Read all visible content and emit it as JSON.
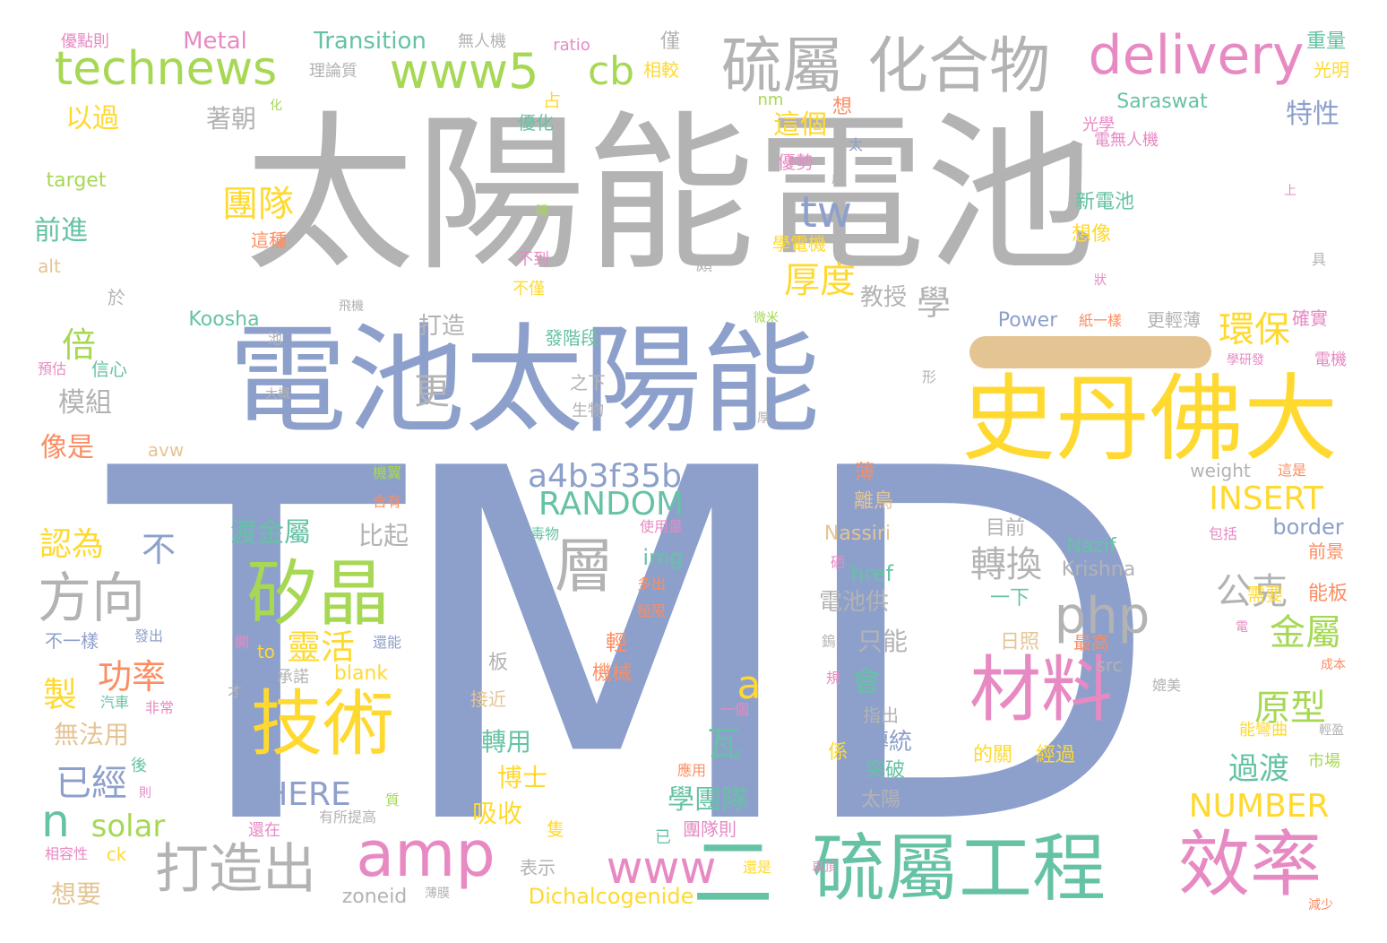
{
  "palette": {
    "gray": "#b3b3b3",
    "blue": "#8da0cb",
    "yellow": "#ffd92f",
    "green": "#a6d854",
    "teal": "#66c2a5",
    "pink": "#e78ac3",
    "orange": "#fc8d62",
    "tan": "#e5c494"
  },
  "dash_color": "#e5c494",
  "words": [
    {
      "text": "太陽能電池",
      "color": "gray"
    },
    {
      "text": "TMD",
      "color": "blue"
    },
    {
      "text": "電池太陽能",
      "color": "blue"
    },
    {
      "text": "史丹佛大",
      "color": "yellow"
    },
    {
      "text": "硫屬",
      "color": "gray"
    },
    {
      "text": "化合物",
      "color": "gray"
    },
    {
      "text": "technews",
      "color": "green"
    },
    {
      "text": "www5",
      "color": "green"
    },
    {
      "text": "delivery",
      "color": "pink"
    },
    {
      "text": "cb",
      "color": "green"
    },
    {
      "text": "tw",
      "color": "blue"
    },
    {
      "text": "硫屬工程",
      "color": "teal"
    },
    {
      "text": "二",
      "color": "teal"
    },
    {
      "text": "效率",
      "color": "pink"
    },
    {
      "text": "材料",
      "color": "pink"
    },
    {
      "text": "技術",
      "color": "yellow"
    },
    {
      "text": "矽晶",
      "color": "green"
    },
    {
      "text": "amp",
      "color": "pink"
    },
    {
      "text": "打造出",
      "color": "gray"
    },
    {
      "text": "方向",
      "color": "gray"
    },
    {
      "text": "php",
      "color": "gray"
    },
    {
      "text": "層",
      "color": "gray"
    },
    {
      "text": "a4b3f35b",
      "color": "blue"
    },
    {
      "text": "RANDOM",
      "color": "teal"
    },
    {
      "text": "INSERT",
      "color": "yellow"
    },
    {
      "text": "www",
      "color": "pink"
    },
    {
      "text": "NUMBER",
      "color": "yellow"
    },
    {
      "text": "HERE",
      "color": "blue"
    },
    {
      "text": "solar",
      "color": "green"
    },
    {
      "text": "n",
      "color": "teal"
    },
    {
      "text": "已經",
      "color": "blue"
    },
    {
      "text": "環保",
      "color": "yellow"
    },
    {
      "text": "厚度",
      "color": "yellow"
    },
    {
      "text": "團隊",
      "color": "yellow"
    },
    {
      "text": "轉換",
      "color": "gray"
    },
    {
      "text": "公克",
      "color": "gray"
    },
    {
      "text": "金屬",
      "color": "green"
    },
    {
      "text": "原型",
      "color": "green"
    },
    {
      "text": "過渡",
      "color": "teal"
    },
    {
      "text": "靈活",
      "color": "yellow"
    },
    {
      "text": "功率",
      "color": "orange"
    },
    {
      "text": "倍",
      "color": "green"
    },
    {
      "text": "更",
      "color": "gray"
    },
    {
      "text": "模組",
      "color": "gray"
    },
    {
      "text": "像是",
      "color": "orange"
    },
    {
      "text": "認為",
      "color": "yellow"
    },
    {
      "text": "不",
      "color": "blue"
    },
    {
      "text": "製",
      "color": "yellow"
    },
    {
      "text": "a",
      "color": "yellow"
    },
    {
      "text": "瓦",
      "color": "teal"
    },
    {
      "text": "會",
      "color": "teal"
    },
    {
      "text": "學",
      "color": "gray"
    },
    {
      "text": "特性",
      "color": "blue"
    },
    {
      "text": "這個",
      "color": "yellow"
    },
    {
      "text": "以過",
      "color": "yellow"
    },
    {
      "text": "前進",
      "color": "teal"
    },
    {
      "text": "著朝",
      "color": "gray"
    },
    {
      "text": "渡金屬",
      "color": "teal"
    },
    {
      "text": "比起",
      "color": "gray"
    },
    {
      "text": "學團隊",
      "color": "teal"
    },
    {
      "text": "博士",
      "color": "yellow"
    },
    {
      "text": "轉用",
      "color": "teal"
    },
    {
      "text": "吸收",
      "color": "yellow"
    },
    {
      "text": "傳統",
      "color": "blue"
    },
    {
      "text": "只能",
      "color": "gray"
    },
    {
      "text": "電池供",
      "color": "gray"
    },
    {
      "text": "教授",
      "color": "gray"
    },
    {
      "text": "打造",
      "color": "gray"
    },
    {
      "text": "無法用",
      "color": "tan"
    },
    {
      "text": "想要",
      "color": "tan"
    },
    {
      "text": "Metal",
      "color": "pink"
    },
    {
      "text": "Transition",
      "color": "teal"
    },
    {
      "text": "Koosha",
      "color": "teal"
    },
    {
      "text": "Dichalcogenide",
      "color": "yellow"
    },
    {
      "text": "Nassiri",
      "color": "tan"
    },
    {
      "text": "Nazif",
      "color": "teal"
    },
    {
      "text": "Krishna",
      "color": "gray"
    },
    {
      "text": "Saraswat",
      "color": "teal"
    },
    {
      "text": "Power",
      "color": "blue"
    },
    {
      "text": "border",
      "color": "blue"
    },
    {
      "text": "href",
      "color": "teal"
    },
    {
      "text": "img",
      "color": "teal"
    },
    {
      "text": "target",
      "color": "green"
    },
    {
      "text": "alt",
      "color": "tan"
    },
    {
      "text": "blank",
      "color": "yellow"
    },
    {
      "text": "zoneid",
      "color": "gray"
    },
    {
      "text": "weight",
      "color": "gray"
    },
    {
      "text": "avw",
      "color": "tan"
    },
    {
      "text": "ratio",
      "color": "pink"
    },
    {
      "text": "nm",
      "color": "green"
    },
    {
      "text": "src",
      "color": "gray"
    },
    {
      "text": "to",
      "color": "yellow"
    },
    {
      "text": "ck",
      "color": "yellow"
    },
    {
      "text": "優點則",
      "color": "pink"
    },
    {
      "text": "理論質",
      "color": "gray"
    },
    {
      "text": "無人機",
      "color": "gray"
    },
    {
      "text": "僅",
      "color": "gray"
    },
    {
      "text": "相較",
      "color": "yellow"
    },
    {
      "text": "重量",
      "color": "teal"
    },
    {
      "text": "光明",
      "color": "yellow"
    },
    {
      "text": "光學",
      "color": "pink"
    },
    {
      "text": "電無人機",
      "color": "pink"
    },
    {
      "text": "新電池",
      "color": "teal"
    },
    {
      "text": "想像",
      "color": "yellow"
    },
    {
      "text": "優勢",
      "color": "pink"
    },
    {
      "text": "學電機",
      "color": "yellow"
    },
    {
      "text": "這種",
      "color": "orange"
    },
    {
      "text": "不到",
      "color": "pink"
    },
    {
      "text": "不僅",
      "color": "yellow"
    },
    {
      "text": "發階段",
      "color": "teal"
    },
    {
      "text": "之下",
      "color": "gray"
    },
    {
      "text": "生物",
      "color": "gray"
    },
    {
      "text": "紙一樣",
      "color": "orange"
    },
    {
      "text": "更輕薄",
      "color": "gray"
    },
    {
      "text": "確實",
      "color": "pink"
    },
    {
      "text": "電機",
      "color": "pink"
    },
    {
      "text": "學研發",
      "color": "pink"
    },
    {
      "text": "優化",
      "color": "teal"
    },
    {
      "text": "占",
      "color": "yellow"
    },
    {
      "text": "想",
      "color": "orange"
    },
    {
      "text": "信心",
      "color": "teal"
    },
    {
      "text": "預估",
      "color": "pink"
    },
    {
      "text": "飛機",
      "color": "gray"
    },
    {
      "text": "大概",
      "color": "gray"
    },
    {
      "text": "於",
      "color": "gray"
    },
    {
      "text": "池",
      "color": "gray"
    },
    {
      "text": "頗",
      "color": "gray"
    },
    {
      "text": "薄",
      "color": "orange"
    },
    {
      "text": "離鳥",
      "color": "tan"
    },
    {
      "text": "含有",
      "color": "orange"
    },
    {
      "text": "機翼",
      "color": "green"
    },
    {
      "text": "毒物",
      "color": "teal"
    },
    {
      "text": "使用量",
      "color": "pink"
    },
    {
      "text": "多出",
      "color": "orange"
    },
    {
      "text": "極限",
      "color": "orange"
    },
    {
      "text": "輕",
      "color": "orange"
    },
    {
      "text": "機械",
      "color": "orange"
    },
    {
      "text": "板",
      "color": "gray"
    },
    {
      "text": "承諾",
      "color": "gray"
    },
    {
      "text": "發出",
      "color": "blue"
    },
    {
      "text": "不一樣",
      "color": "blue"
    },
    {
      "text": "開",
      "color": "pink"
    },
    {
      "text": "還能",
      "color": "blue"
    },
    {
      "text": "汽車",
      "color": "teal"
    },
    {
      "text": "非常",
      "color": "pink"
    },
    {
      "text": "才",
      "color": "gray"
    },
    {
      "text": "接近",
      "color": "tan"
    },
    {
      "text": "一個",
      "color": "pink"
    },
    {
      "text": "薄且",
      "color": "blue"
    },
    {
      "text": "規",
      "color": "pink"
    },
    {
      "text": "指出",
      "color": "gray"
    },
    {
      "text": "係",
      "color": "yellow"
    },
    {
      "text": "突破",
      "color": "teal"
    },
    {
      "text": "太陽",
      "color": "gray"
    },
    {
      "text": "的關",
      "color": "yellow"
    },
    {
      "text": "經過",
      "color": "yellow"
    },
    {
      "text": "目前",
      "color": "gray"
    },
    {
      "text": "一下",
      "color": "teal"
    },
    {
      "text": "日照",
      "color": "tan"
    },
    {
      "text": "最高",
      "color": "orange"
    },
    {
      "text": "需要",
      "color": "yellow"
    },
    {
      "text": "能板",
      "color": "orange"
    },
    {
      "text": "前景",
      "color": "orange"
    },
    {
      "text": "包括",
      "color": "pink"
    },
    {
      "text": "成本",
      "color": "orange"
    },
    {
      "text": "媲美",
      "color": "gray"
    },
    {
      "text": "能彎曲",
      "color": "yellow"
    },
    {
      "text": "輕盈",
      "color": "gray"
    },
    {
      "text": "市場",
      "color": "green"
    },
    {
      "text": "這是",
      "color": "orange"
    },
    {
      "text": "應用",
      "color": "orange"
    },
    {
      "text": "團隊則",
      "color": "pink"
    },
    {
      "text": "已",
      "color": "teal"
    },
    {
      "text": "隻",
      "color": "yellow"
    },
    {
      "text": "表示",
      "color": "gray"
    },
    {
      "text": "還是",
      "color": "yellow"
    },
    {
      "text": "車頂",
      "color": "pink"
    },
    {
      "text": "薄膜",
      "color": "gray"
    },
    {
      "text": "有所提高",
      "color": "gray"
    },
    {
      "text": "還在",
      "color": "pink"
    },
    {
      "text": "質",
      "color": "green"
    },
    {
      "text": "後",
      "color": "teal"
    },
    {
      "text": "則",
      "color": "pink"
    },
    {
      "text": "相容性",
      "color": "pink"
    },
    {
      "text": "減少",
      "color": "orange"
    },
    {
      "text": "硒",
      "color": "pink"
    },
    {
      "text": "鎢",
      "color": "gray"
    },
    {
      "text": "電",
      "color": "pink"
    },
    {
      "text": "形",
      "color": "gray"
    },
    {
      "text": "厚",
      "color": "gray"
    },
    {
      "text": "微米",
      "color": "green"
    },
    {
      "text": "陽",
      "color": "green"
    },
    {
      "text": "成",
      "color": "gray"
    },
    {
      "text": "太",
      "color": "blue"
    },
    {
      "text": "上",
      "color": "pink"
    },
    {
      "text": "具",
      "color": "gray"
    },
    {
      "text": "狀",
      "color": "pink"
    },
    {
      "text": "化",
      "color": "green"
    }
  ]
}
